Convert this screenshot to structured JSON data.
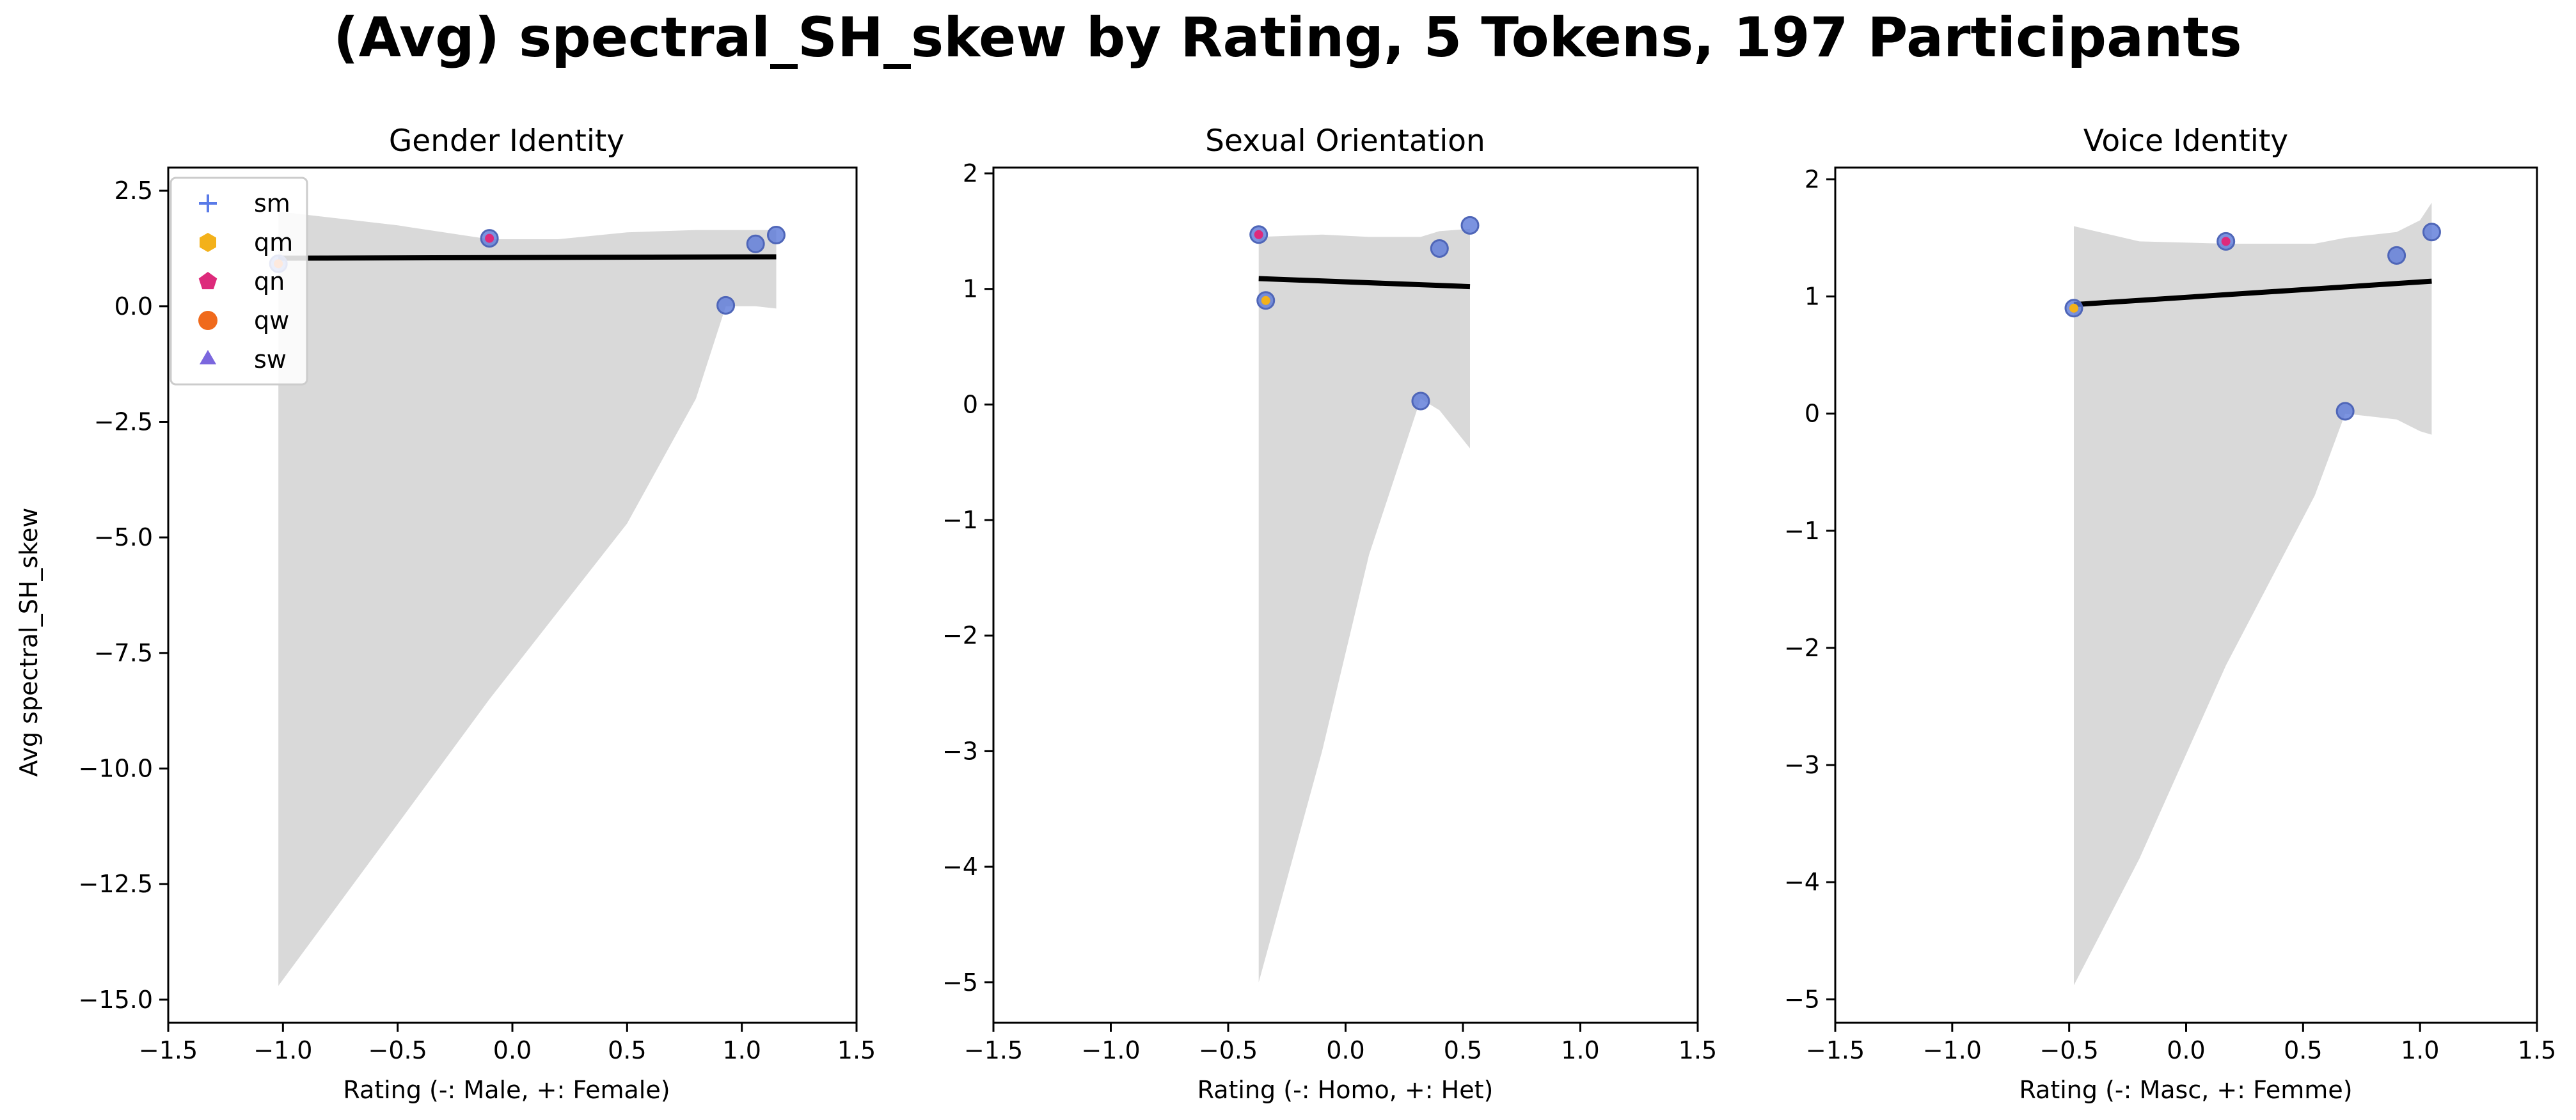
{
  "figure": {
    "title": "(Avg) spectral_SH_skew by Rating, 5 Tokens, 197 Participants",
    "ylabel": "Avg spectral_SH_skew"
  },
  "legend": {
    "placement": "upper-left of first panel",
    "entries": [
      {
        "label": "sm",
        "marker": "plus",
        "color": "#5a7be8"
      },
      {
        "label": "qm",
        "marker": "hexagon",
        "color": "#f3b11a"
      },
      {
        "label": "qn",
        "marker": "pentagon",
        "color": "#dd2a7b"
      },
      {
        "label": "qw",
        "marker": "circle",
        "color": "#f06a1c"
      },
      {
        "label": "sw",
        "marker": "triangle",
        "color": "#7b67de"
      }
    ]
  },
  "chart_data": [
    {
      "type": "scatter",
      "title": "Gender Identity",
      "xlabel": "Rating (-: Male, +: Female)",
      "ylabel": "Avg spectral_SH_skew",
      "xlim": [
        -1.5,
        1.5
      ],
      "ylim": [
        -15.5,
        3.0
      ],
      "xticks": [
        -1.5,
        -1.0,
        -0.5,
        0.0,
        0.5,
        1.0,
        1.5
      ],
      "xtick_labels": [
        "−1.5",
        "−1.0",
        "−0.5",
        "0.0",
        "0.5",
        "1.0",
        "1.5"
      ],
      "yticks": [
        2.5,
        0.0,
        -2.5,
        -5.0,
        -7.5,
        -10.0,
        -12.5,
        -15.0
      ],
      "ytick_labels": [
        "2.5",
        "0.0",
        "−2.5",
        "−5.0",
        "−7.5",
        "−10.0",
        "−12.5",
        "−15.0"
      ],
      "grid": false,
      "points": [
        {
          "token": "qw",
          "x": -1.02,
          "y": 0.92
        },
        {
          "token": "qn",
          "x": -0.1,
          "y": 1.47
        },
        {
          "token": "sm",
          "x": 0.93,
          "y": 0.02
        },
        {
          "token": "sw",
          "x": 1.06,
          "y": 1.35
        },
        {
          "token": "sm",
          "x": 1.15,
          "y": 1.54
        }
      ],
      "regression": {
        "x": [
          -1.02,
          1.15
        ],
        "y": [
          1.04,
          1.07
        ]
      },
      "ci_band": {
        "x": [
          -1.02,
          -0.5,
          -0.1,
          0.2,
          0.5,
          0.8,
          0.93,
          1.06,
          1.15
        ],
        "upper": [
          2.05,
          1.75,
          1.45,
          1.45,
          1.6,
          1.65,
          1.65,
          1.65,
          1.65
        ],
        "lower": [
          -14.7,
          -11.2,
          -8.5,
          -6.6,
          -4.7,
          -2.0,
          0.0,
          0.0,
          -0.05
        ]
      }
    },
    {
      "type": "scatter",
      "title": "Sexual Orientation",
      "xlabel": "Rating (-: Homo, +: Het)",
      "ylabel": "",
      "xlim": [
        -1.5,
        1.5
      ],
      "ylim": [
        -5.35,
        2.05
      ],
      "xticks": [
        -1.5,
        -1.0,
        -0.5,
        0.0,
        0.5,
        1.0,
        1.5
      ],
      "xtick_labels": [
        "−1.5",
        "−1.0",
        "−0.5",
        "0.0",
        "0.5",
        "1.0",
        "1.5"
      ],
      "yticks": [
        2,
        1,
        0,
        -1,
        -2,
        -3,
        -4,
        -5
      ],
      "ytick_labels": [
        "2",
        "1",
        "0",
        "−1",
        "−2",
        "−3",
        "−4",
        "−5"
      ],
      "grid": false,
      "points": [
        {
          "token": "qn",
          "x": -0.37,
          "y": 1.47
        },
        {
          "token": "qm",
          "x": -0.34,
          "y": 0.9
        },
        {
          "token": "sm",
          "x": 0.32,
          "y": 0.03
        },
        {
          "token": "sw",
          "x": 0.4,
          "y": 1.35
        },
        {
          "token": "sm",
          "x": 0.53,
          "y": 1.55
        }
      ],
      "regression": {
        "x": [
          -0.37,
          0.53
        ],
        "y": [
          1.09,
          1.02
        ]
      },
      "ci_band": {
        "x": [
          -0.37,
          -0.1,
          0.1,
          0.32,
          0.4,
          0.53
        ],
        "upper": [
          1.45,
          1.47,
          1.45,
          1.45,
          1.5,
          1.52
        ],
        "lower": [
          -5.0,
          -3.0,
          -1.3,
          0.05,
          -0.05,
          -0.38
        ]
      }
    },
    {
      "type": "scatter",
      "title": "Voice Identity",
      "xlabel": "Rating (-: Masc, +: Femme)",
      "ylabel": "",
      "xlim": [
        -1.5,
        1.5
      ],
      "ylim": [
        -5.2,
        2.1
      ],
      "xticks": [
        -1.5,
        -1.0,
        -0.5,
        0.0,
        0.5,
        1.0,
        1.5
      ],
      "xtick_labels": [
        "−1.5",
        "−1.0",
        "−0.5",
        "0.0",
        "0.5",
        "1.0",
        "1.5"
      ],
      "yticks": [
        2,
        1,
        0,
        -1,
        -2,
        -3,
        -4,
        -5
      ],
      "ytick_labels": [
        "2",
        "1",
        "0",
        "−1",
        "−2",
        "−3",
        "−4",
        "−5"
      ],
      "grid": false,
      "points": [
        {
          "token": "qm",
          "x": -0.48,
          "y": 0.9
        },
        {
          "token": "qn",
          "x": 0.17,
          "y": 1.47
        },
        {
          "token": "sm",
          "x": 0.68,
          "y": 0.02
        },
        {
          "token": "sw",
          "x": 0.9,
          "y": 1.35
        },
        {
          "token": "sm",
          "x": 1.05,
          "y": 1.55
        }
      ],
      "regression": {
        "x": [
          -0.48,
          1.05
        ],
        "y": [
          0.93,
          1.13
        ]
      },
      "ci_band": {
        "x": [
          -0.48,
          -0.2,
          0.17,
          0.55,
          0.68,
          0.9,
          1.0,
          1.05
        ],
        "upper": [
          1.6,
          1.47,
          1.45,
          1.45,
          1.5,
          1.55,
          1.65,
          1.8
        ],
        "lower": [
          -4.88,
          -3.8,
          -2.15,
          -0.7,
          0.0,
          -0.05,
          -0.15,
          -0.18
        ]
      }
    }
  ]
}
